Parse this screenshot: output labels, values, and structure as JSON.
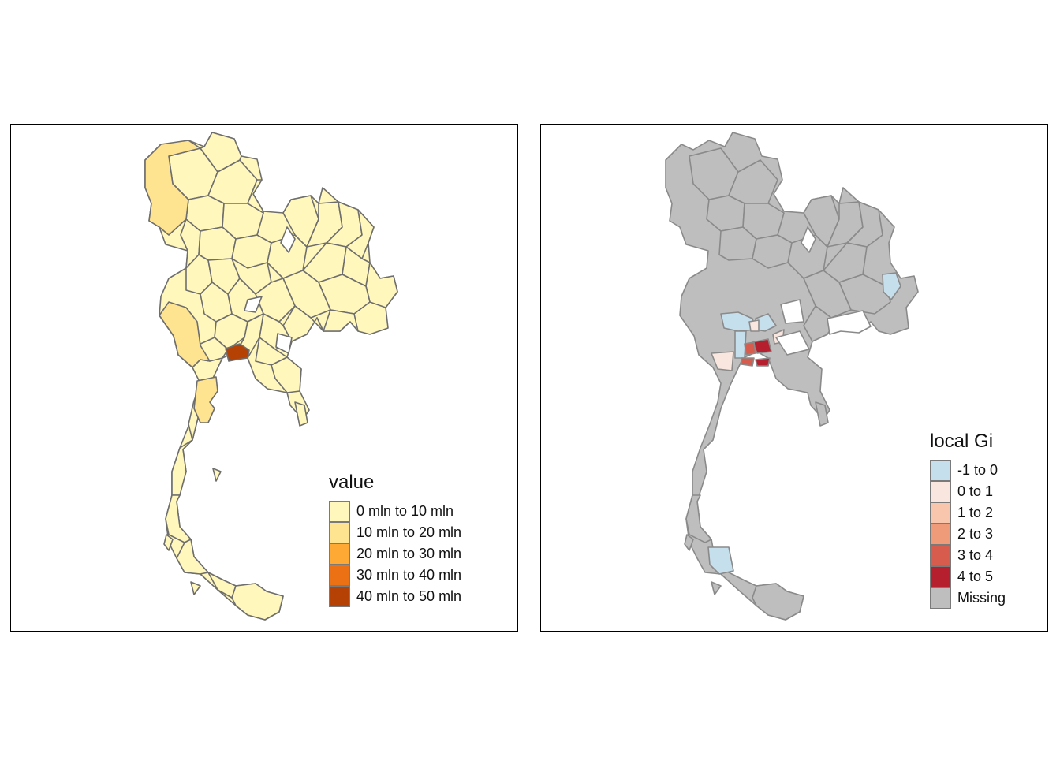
{
  "maps": [
    {
      "legend": {
        "title": "value",
        "items": [
          {
            "label": "0 mln to 10 mln",
            "color": "#fff7bc"
          },
          {
            "label": "10 mln to 20 mln",
            "color": "#fee391"
          },
          {
            "label": "20 mln to 30 mln",
            "color": "#fea933"
          },
          {
            "label": "30 mln to 40 mln",
            "color": "#ec7014"
          },
          {
            "label": "40 mln to 50 mln",
            "color": "#b64104"
          }
        ]
      }
    },
    {
      "legend": {
        "title": "local Gi",
        "items": [
          {
            "label": "-1 to 0",
            "color": "#c6dfed"
          },
          {
            "label": "0 to 1",
            "color": "#f8e6df"
          },
          {
            "label": "1 to 2",
            "color": "#f8c6ac"
          },
          {
            "label": "2 to 3",
            "color": "#ef9a79"
          },
          {
            "label": "3 to 4",
            "color": "#d75c4e"
          },
          {
            "label": "4 to 5",
            "color": "#b51f2e"
          },
          {
            "label": "Missing",
            "color": "#bebebe"
          }
        ]
      }
    }
  ],
  "style": {
    "border_color": "#6e6e6e",
    "background": "#ffffff"
  }
}
